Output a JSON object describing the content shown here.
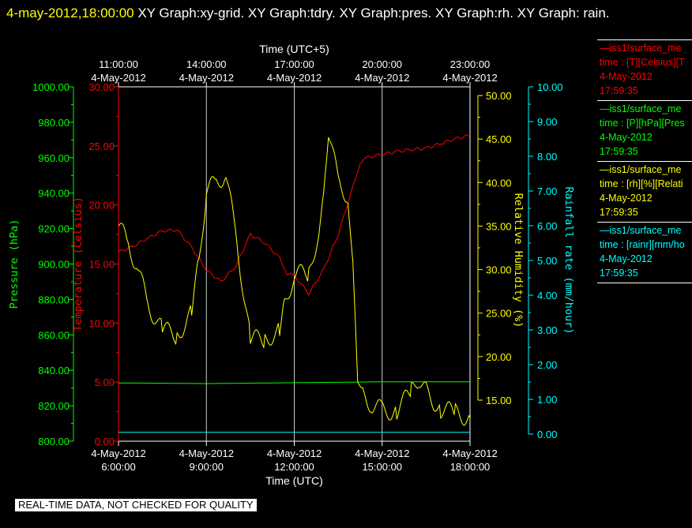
{
  "header": {
    "timestamp": "4-may-2012,18:00:00",
    "rest": "  XY Graph:xy-grid.  XY Graph:tdry.  XY Graph:pres.  XY Graph:rh.  XY Graph: rain."
  },
  "badge": "REAL-TIME DATA, NOT CHECKED FOR QUALITY",
  "colors": {
    "temperature": "#ff0000",
    "pressure": "#00ff00",
    "rh": "#ffff00",
    "rain": "#00ffff",
    "grid": "#ffffff",
    "background": "#000000"
  },
  "legend": [
    {
      "name": "iss1/surface_me",
      "line1": "time : [T][Celsius][T",
      "line2": "4-May-2012",
      "line3": "17:59:35",
      "color": "#ff0000"
    },
    {
      "name": "iss1/surface_me",
      "line1": "time : [P][hPa][Pres",
      "line2": "4-May-2012",
      "line3": "17:59:35",
      "color": "#00ff00"
    },
    {
      "name": "iss1/surface_me",
      "line1": "time : [rh][%][Relati",
      "line2": "4-May-2012",
      "line3": "17:59:35",
      "color": "#ffff00"
    },
    {
      "name": "iss1/surface_me",
      "line1": "time : [rainr][mm/ho",
      "line2": "4-May-2012",
      "line3": "17:59:35",
      "color": "#00ffff"
    }
  ],
  "chart_data": {
    "type": "line",
    "grid": true,
    "xlabel": "Time (UTC)",
    "x2label": "Time (UTC+5)",
    "xlim": [
      "4-May-2012 6:00:00",
      "4-May-2012 18:00:00"
    ],
    "x_ticks": [
      {
        "date": "4-May-2012",
        "time": "6:00:00"
      },
      {
        "date": "4-May-2012",
        "time": "9:00:00"
      },
      {
        "date": "4-May-2012",
        "time": "12:00:00"
      },
      {
        "date": "4-May-2012",
        "time": "15:00:00"
      },
      {
        "date": "4-May-2012",
        "time": "18:00:00"
      }
    ],
    "x2_ticks": [
      {
        "time": "11:00:00",
        "date": "4-May-2012"
      },
      {
        "time": "14:00:00",
        "date": "4-May-2012"
      },
      {
        "time": "17:00:00",
        "date": "4-May-2012"
      },
      {
        "time": "20:00:00",
        "date": "4-May-2012"
      },
      {
        "time": "23:00:00",
        "date": "4-May-2012"
      }
    ],
    "axes": {
      "pressure": {
        "label": "Pressure (hPa)",
        "ylim": [
          800,
          1000
        ],
        "ticks": [
          "1000.00",
          "980.00",
          "960.00",
          "940.00",
          "920.00",
          "900.00",
          "880.00",
          "860.00",
          "840.00",
          "820.00",
          "800.00"
        ]
      },
      "temperature": {
        "label": "Temperature (Celsius)",
        "ylim": [
          0,
          30
        ],
        "ticks": [
          "30.00",
          "25.00",
          "20.00",
          "15.00",
          "10.00",
          "5.00",
          "0.00"
        ]
      },
      "rh": {
        "label": "Relative Humidity (%)",
        "ylim": [
          10.5,
          51
        ],
        "ticks": [
          "50.00",
          "45.00",
          "40.00",
          "35.00",
          "30.00",
          "25.00",
          "20.00",
          "15.00"
        ]
      },
      "rain": {
        "label": "Rainfall rate (mm/hour)",
        "ylim": [
          0,
          10
        ],
        "ticks": [
          "10.00",
          "9.00",
          "8.00",
          "7.00",
          "6.00",
          "5.00",
          "4.00",
          "3.00",
          "2.00",
          "1.00",
          "0.00"
        ]
      }
    },
    "series": [
      {
        "name": "Temperature",
        "axis": "temperature",
        "x": [
          "6:00:00",
          "6:30:00",
          "7:00:00",
          "7:30:00",
          "8:00:00",
          "8:30:00",
          "9:00:00",
          "9:30:00",
          "10:00:00",
          "10:30:00",
          "11:00:00",
          "11:30:00",
          "11:45:00",
          "12:00:00",
          "12:30:00",
          "13:00:00",
          "13:30:00",
          "14:00:00",
          "14:15:00",
          "14:30:00",
          "15:00:00",
          "15:30:00",
          "16:00:00",
          "16:30:00",
          "17:00:00",
          "17:30:00",
          "18:00:00"
        ],
        "values": [
          16.0,
          16.5,
          17.2,
          17.8,
          17.9,
          16.4,
          14.5,
          13.5,
          14.8,
          17.5,
          16.8,
          15.5,
          14.2,
          14.0,
          12.5,
          14.5,
          17.5,
          21.5,
          23.6,
          24.0,
          24.3,
          24.5,
          24.7,
          24.8,
          25.2,
          25.6,
          25.9
        ]
      },
      {
        "name": "Pressure",
        "axis": "pressure",
        "x": [
          "6:00:00",
          "9:00:00",
          "12:00:00",
          "15:00:00",
          "18:00:00"
        ],
        "values": [
          832.9,
          832.5,
          833.0,
          833.5,
          833.5
        ]
      },
      {
        "name": "Relative Humidity",
        "axis": "rh",
        "x": [
          "6:00:00",
          "6:20:00",
          "6:40:00",
          "7:00:00",
          "7:30:00",
          "8:00:00",
          "8:30:00",
          "8:45:00",
          "9:00:00",
          "9:20:00",
          "9:40:00",
          "10:00:00",
          "10:30:00",
          "11:00:00",
          "11:30:00",
          "11:40:00",
          "12:00:00",
          "12:30:00",
          "12:50:00",
          "13:00:00",
          "13:10:00",
          "13:30:00",
          "13:50:00",
          "14:00:00",
          "14:10:00",
          "14:20:00",
          "14:40:00",
          "15:00:00",
          "15:30:00",
          "16:00:00",
          "16:15:00",
          "16:30:00",
          "17:00:00",
          "17:30:00",
          "18:00:00"
        ],
        "values": [
          35.0,
          33.0,
          30.0,
          26.0,
          23.0,
          22.5,
          25.0,
          31.0,
          39.0,
          40.0,
          41.0,
          34.0,
          22.0,
          22.0,
          23.0,
          26.0,
          29.5,
          29.5,
          34.5,
          38.0,
          46.0,
          40.0,
          38.5,
          30.0,
          18.0,
          15.5,
          14.5,
          13.8,
          13.8,
          16.0,
          17.5,
          16.0,
          14.0,
          13.5,
          13.0
        ]
      },
      {
        "name": "Rainfall rate",
        "axis": "rain",
        "x": [
          "6:00:00",
          "18:00:00"
        ],
        "values": [
          0.05,
          0.05
        ]
      }
    ]
  }
}
